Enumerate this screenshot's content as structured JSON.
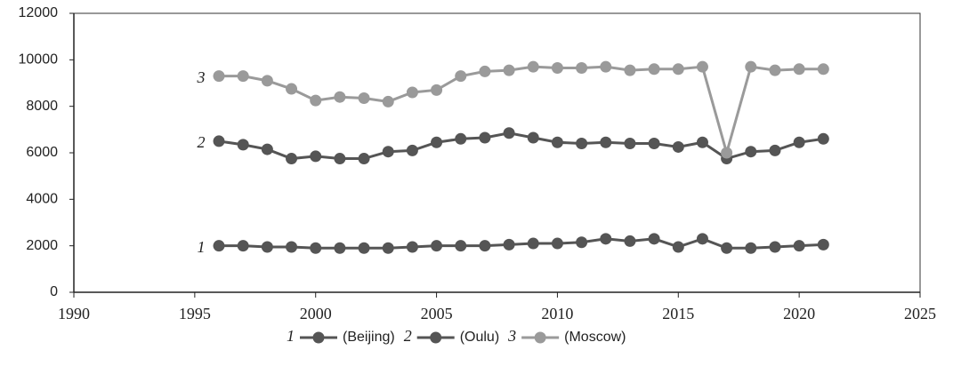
{
  "chart_data": {
    "type": "line",
    "x": [
      1996,
      1997,
      1998,
      1999,
      2000,
      2001,
      2002,
      2003,
      2004,
      2005,
      2006,
      2007,
      2008,
      2009,
      2010,
      2011,
      2012,
      2013,
      2014,
      2015,
      2016,
      2017,
      2018,
      2019,
      2020,
      2021
    ],
    "series": [
      {
        "label": "1",
        "name": "(Beijing)",
        "color": "#555555",
        "values": [
          2000,
          2000,
          1950,
          1950,
          1900,
          1900,
          1900,
          1900,
          1950,
          2000,
          2000,
          2000,
          2050,
          2100,
          2100,
          2150,
          2300,
          2200,
          2300,
          1950,
          2300,
          1900,
          1900,
          1950,
          2000,
          2050
        ]
      },
      {
        "label": "2",
        "name": "(Oulu)",
        "color": "#555555",
        "values": [
          6500,
          6350,
          6150,
          5750,
          5850,
          5750,
          5750,
          6050,
          6100,
          6450,
          6600,
          6650,
          6850,
          6650,
          6450,
          6400,
          6450,
          6400,
          6400,
          6250,
          6450,
          5750,
          6050,
          6100,
          6450,
          6600
        ]
      },
      {
        "label": "3",
        "name": "(Moscow)",
        "color": "#9a9a9a",
        "values": [
          9300,
          9300,
          9100,
          8750,
          8250,
          8400,
          8350,
          8200,
          8600,
          8700,
          9300,
          9500,
          9550,
          9700,
          9650,
          9650,
          9700,
          9550,
          9600,
          9600,
          9700,
          6000,
          9700,
          9550,
          9600,
          9600
        ]
      }
    ],
    "xlim": [
      1990,
      2025
    ],
    "xticks": [
      1990,
      1995,
      2000,
      2005,
      2010,
      2015,
      2020,
      2025
    ],
    "ylim": [
      0,
      12000
    ],
    "yticks": [
      0,
      2000,
      4000,
      6000,
      8000,
      10000,
      12000
    ],
    "legend_position": "bottom"
  }
}
